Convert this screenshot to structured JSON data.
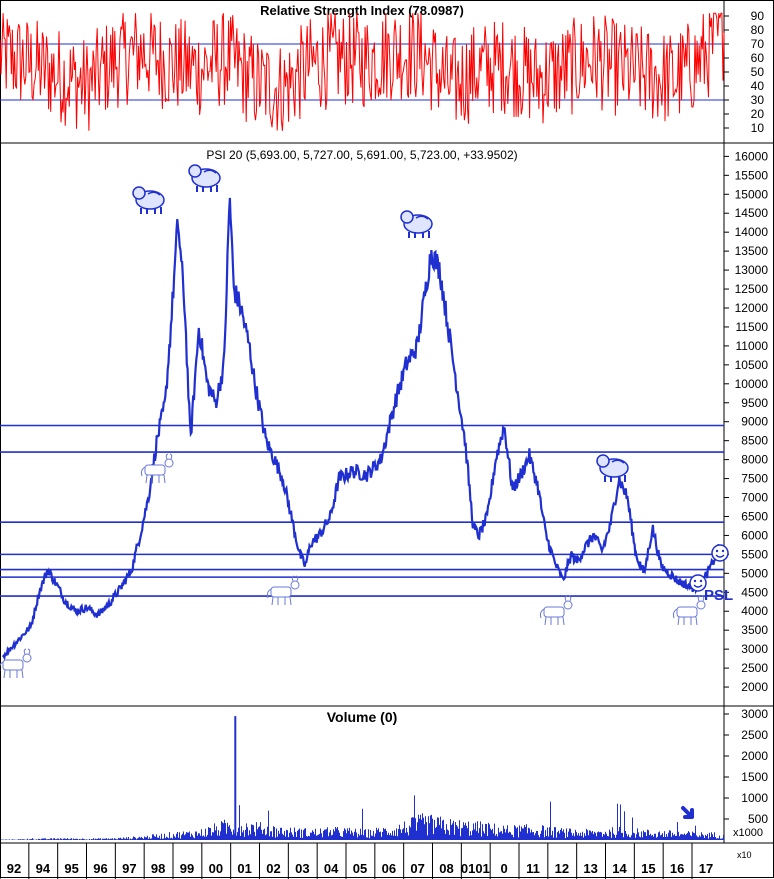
{
  "colors": {
    "rsi_line": "#ff0000",
    "price_line": "#1f2fd0",
    "volume_bars": "#1f2fd0",
    "hline": "#1f2fd0",
    "frame": "#000000",
    "grid_minor": "#c8c8c8",
    "background": "#ffffff"
  },
  "icons": {
    "bear": "bear-icon",
    "bull": "bull-icon",
    "smiley": "smiley-icon",
    "arrow": "arrow-down-right-icon"
  },
  "chart_data": [
    {
      "type": "line",
      "panel": "rsi",
      "title": "Relative Strength Index (78.0987)",
      "ylim": [
        0,
        100
      ],
      "yticks": [
        10,
        20,
        30,
        40,
        50,
        60,
        70,
        80,
        90
      ],
      "reference_lines": [
        30,
        70
      ],
      "series": [
        {
          "x": [
            1992.0,
            1993.0,
            1994.0,
            1995.0,
            1996.0,
            1997.0,
            1998.0,
            1999.0,
            2000.0,
            2001.0,
            2002.0,
            2003.0,
            2004.0,
            2005.0,
            2006.0,
            2007.0,
            2008.0,
            2009.0,
            2010.0,
            2011.0,
            2012.0,
            2013.0,
            2014.0,
            2015.0,
            2016.0,
            2017.0,
            2017.7
          ],
          "y": [
            62,
            55,
            48,
            40,
            58,
            65,
            55,
            52,
            60,
            42,
            38,
            55,
            60,
            58,
            65,
            62,
            40,
            52,
            55,
            45,
            50,
            60,
            52,
            48,
            45,
            60,
            78.1
          ]
        }
      ]
    },
    {
      "type": "line",
      "panel": "price",
      "title": "PSI 20 (5,693.00, 5,727.00, 5,691.00, 5,723.00, +33.9502)",
      "ylim": [
        1500,
        16300
      ],
      "yticks": [
        2000,
        2500,
        3000,
        3500,
        4000,
        4500,
        5000,
        5500,
        6000,
        6500,
        7000,
        7500,
        8000,
        8500,
        9000,
        9500,
        10000,
        10500,
        11000,
        11500,
        12000,
        12500,
        13000,
        13500,
        14000,
        14500,
        15000,
        15500,
        16000
      ],
      "reference_lines": [
        8900,
        8200,
        6350,
        5500,
        5100,
        4900,
        4400
      ],
      "series": [
        {
          "x": [
            1992.0,
            1992.5,
            1993.0,
            1993.3,
            1993.6,
            1994.0,
            1994.2,
            1994.6,
            1995.0,
            1995.4,
            1995.8,
            1996.2,
            1996.6,
            1996.9,
            1997.2,
            1997.5,
            1997.8,
            1998.0,
            1998.25,
            1998.5,
            1998.7,
            1998.9,
            1999.0,
            1999.3,
            1999.6,
            1999.9,
            2000.1,
            2000.25,
            2000.5,
            2000.8,
            2001.0,
            2001.4,
            2001.7,
            2002.0,
            2002.3,
            2002.6,
            2002.8,
            2003.0,
            2003.3,
            2003.7,
            2004.0,
            2004.5,
            2005.0,
            2005.5,
            2006.0,
            2006.4,
            2006.8,
            2007.0,
            2007.3,
            2007.6,
            2007.9,
            2008.2,
            2008.5,
            2008.8,
            2009.0,
            2009.3,
            2009.6,
            2009.9,
            2010.2,
            2010.5,
            2010.8,
            2011.1,
            2011.4,
            2011.7,
            2012.0,
            2012.3,
            2012.5,
            2012.8,
            2013.1,
            2013.4,
            2013.7,
            2014.0,
            2014.3,
            2014.6,
            2014.9,
            2015.2,
            2015.5,
            2015.8,
            2016.1,
            2016.4,
            2016.7,
            2017.0,
            2017.3,
            2017.6
          ],
          "y": [
            2800,
            3200,
            3600,
            4500,
            5100,
            4600,
            4300,
            4000,
            4100,
            3900,
            4200,
            4600,
            5100,
            6000,
            7000,
            8500,
            9500,
            11500,
            14300,
            12000,
            8500,
            10500,
            11500,
            10000,
            9500,
            10500,
            15000,
            12500,
            12000,
            11000,
            10000,
            8500,
            8000,
            7500,
            6500,
            5500,
            5200,
            5800,
            6000,
            6500,
            7500,
            7700,
            7600,
            8000,
            9500,
            10500,
            11000,
            12000,
            13500,
            13000,
            11500,
            10000,
            8500,
            6200,
            6000,
            6500,
            8000,
            8900,
            7200,
            7600,
            8100,
            7300,
            6000,
            5300,
            4800,
            5500,
            5300,
            5700,
            6000,
            5600,
            6300,
            7500,
            7000,
            5500,
            5000,
            6200,
            5200,
            5000,
            4800,
            4700,
            4600,
            4800,
            5200,
            5723
          ]
        }
      ]
    },
    {
      "type": "bar",
      "panel": "volume",
      "title": "Volume (0)",
      "ylim": [
        0,
        3000
      ],
      "yticks": [
        500,
        1000,
        1500,
        2000,
        2500,
        3000
      ],
      "unit_label": "x1000",
      "series": [
        {
          "x": [
            1992,
            1993,
            1994,
            1995,
            1996,
            1997,
            1998,
            1999,
            2000,
            2000.3,
            2001,
            2002,
            2003,
            2004,
            2005,
            2006,
            2007,
            2008,
            2009,
            2010,
            2011,
            2012,
            2013,
            2014,
            2015,
            2016,
            2017
          ],
          "y": [
            10,
            20,
            40,
            30,
            40,
            80,
            150,
            200,
            400,
            2950,
            350,
            250,
            220,
            250,
            200,
            300,
            500,
            400,
            350,
            280,
            300,
            220,
            200,
            250,
            200,
            180,
            150
          ]
        }
      ]
    }
  ],
  "x_axis": {
    "ticks": [
      "92",
      "94",
      "95",
      "96",
      "97",
      "98",
      "99",
      "00",
      "01",
      "02",
      "03",
      "04",
      "05",
      "06",
      "07",
      "08",
      "0101",
      "0",
      "11",
      "12",
      "13",
      "14",
      "15",
      "16",
      "17"
    ],
    "footer_label": "x10"
  },
  "annotations": {
    "psl_label": "PSL"
  }
}
